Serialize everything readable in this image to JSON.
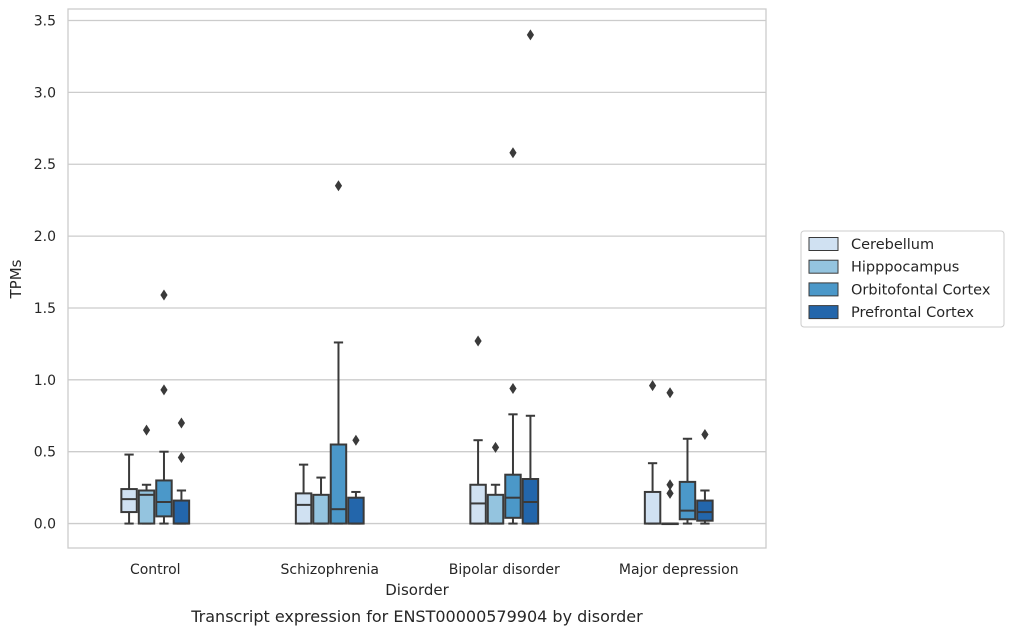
{
  "chart_data": {
    "type": "box",
    "title": "",
    "caption": "Transcript expression for ENST00000579904 by disorder",
    "xlabel": "Disorder",
    "ylabel": "TPMs",
    "ylim": [
      -0.17,
      3.58
    ],
    "yticks": [
      "0.0",
      "0.5",
      "1.0",
      "1.5",
      "2.0",
      "2.5",
      "3.0",
      "3.5"
    ],
    "grid": "horizontal",
    "legend_position": "right",
    "categories": [
      "Control",
      "Schizophrenia",
      "Bipolar disorder",
      "Major depression"
    ],
    "series": [
      {
        "name": "Cerebellum",
        "color": "#d0e1f2",
        "boxes": [
          {
            "q1": 0.08,
            "median": 0.17,
            "q3": 0.24,
            "whisker_low": 0.0,
            "whisker_high": 0.48,
            "outliers": []
          },
          {
            "q1": 0.0,
            "median": 0.13,
            "q3": 0.21,
            "whisker_low": 0.0,
            "whisker_high": 0.41,
            "outliers": []
          },
          {
            "q1": 0.0,
            "median": 0.14,
            "q3": 0.27,
            "whisker_low": 0.0,
            "whisker_high": 0.58,
            "outliers": [
              1.27
            ]
          },
          {
            "q1": 0.0,
            "median": 0.0,
            "q3": 0.22,
            "whisker_low": 0.0,
            "whisker_high": 0.42,
            "outliers": [
              0.96
            ]
          }
        ]
      },
      {
        "name": "Hipppocampus",
        "color": "#94c4df",
        "boxes": [
          {
            "q1": 0.0,
            "median": 0.2,
            "q3": 0.23,
            "whisker_low": 0.0,
            "whisker_high": 0.27,
            "outliers": [
              0.65
            ]
          },
          {
            "q1": 0.0,
            "median": 0.0,
            "q3": 0.2,
            "whisker_low": 0.0,
            "whisker_high": 0.32,
            "outliers": []
          },
          {
            "q1": 0.0,
            "median": 0.0,
            "q3": 0.2,
            "whisker_low": 0.0,
            "whisker_high": 0.27,
            "outliers": [
              0.53
            ]
          },
          {
            "q1": 0.0,
            "median": 0.0,
            "q3": 0.0,
            "whisker_low": 0.0,
            "whisker_high": 0.0,
            "outliers": [
              0.91,
              0.27,
              0.21
            ]
          }
        ]
      },
      {
        "name": "Orbitofontal Cortex",
        "color": "#4b98c9",
        "boxes": [
          {
            "q1": 0.05,
            "median": 0.15,
            "q3": 0.3,
            "whisker_low": 0.0,
            "whisker_high": 0.5,
            "outliers": [
              1.59,
              0.93
            ]
          },
          {
            "q1": 0.0,
            "median": 0.1,
            "q3": 0.55,
            "whisker_low": 0.0,
            "whisker_high": 1.26,
            "outliers": [
              2.35
            ]
          },
          {
            "q1": 0.04,
            "median": 0.18,
            "q3": 0.34,
            "whisker_low": 0.0,
            "whisker_high": 0.76,
            "outliers": [
              2.58,
              0.94
            ]
          },
          {
            "q1": 0.03,
            "median": 0.09,
            "q3": 0.29,
            "whisker_low": 0.0,
            "whisker_high": 0.59,
            "outliers": []
          }
        ]
      },
      {
        "name": "Prefrontal Cortex",
        "color": "#2366ab",
        "boxes": [
          {
            "q1": 0.0,
            "median": 0.0,
            "q3": 0.16,
            "whisker_low": 0.0,
            "whisker_high": 0.23,
            "outliers": [
              0.7,
              0.46
            ]
          },
          {
            "q1": 0.0,
            "median": 0.0,
            "q3": 0.18,
            "whisker_low": 0.0,
            "whisker_high": 0.22,
            "outliers": [
              0.58
            ]
          },
          {
            "q1": 0.0,
            "median": 0.15,
            "q3": 0.31,
            "whisker_low": 0.0,
            "whisker_high": 0.75,
            "outliers": [
              3.4
            ]
          },
          {
            "q1": 0.02,
            "median": 0.08,
            "q3": 0.16,
            "whisker_low": 0.0,
            "whisker_high": 0.23,
            "outliers": [
              0.62
            ]
          }
        ]
      }
    ]
  }
}
